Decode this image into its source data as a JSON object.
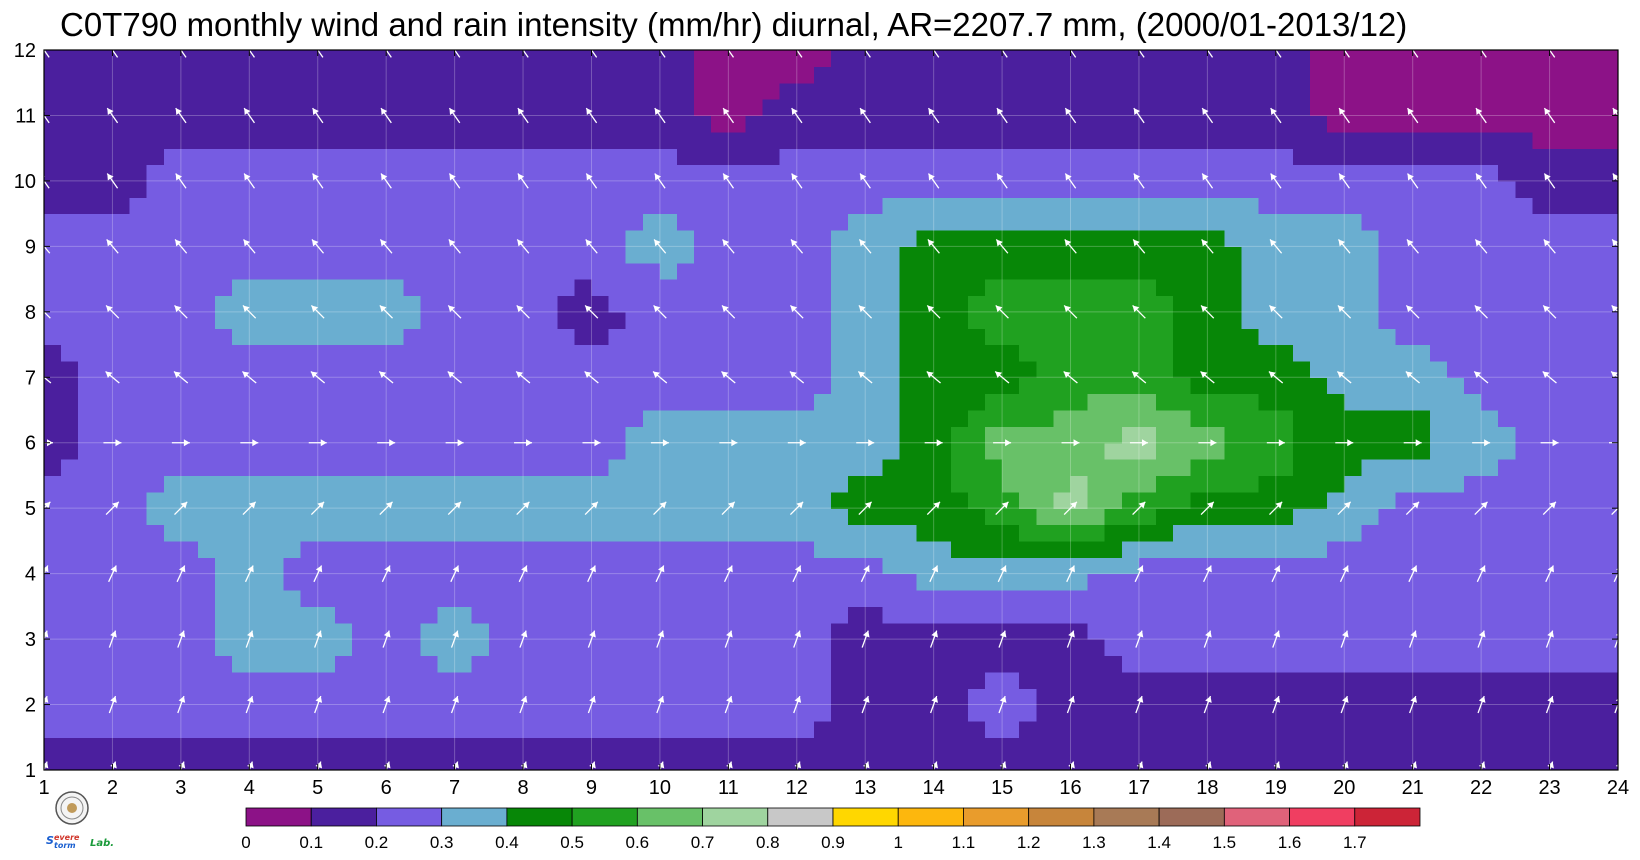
{
  "chart_data": {
    "type": "heatmap",
    "title": "C0T790 monthly wind and rain intensity (mm/hr) diurnal, AR=2207.7 mm, (2000/01-2013/12)",
    "xlabel": "",
    "ylabel": "",
    "x": [
      1,
      2,
      3,
      4,
      5,
      6,
      7,
      8,
      9,
      10,
      11,
      12,
      13,
      14,
      15,
      16,
      17,
      18,
      19,
      20,
      21,
      22,
      23,
      24
    ],
    "y": [
      1,
      2,
      3,
      4,
      5,
      6,
      7,
      8,
      9,
      10,
      11,
      12
    ],
    "xlim": [
      1,
      24
    ],
    "ylim": [
      1,
      12
    ],
    "grid": true,
    "colorbar": {
      "levels": [
        0,
        0.1,
        0.2,
        0.3,
        0.4,
        0.5,
        0.6,
        0.7,
        0.8,
        0.9,
        1,
        1.1,
        1.2,
        1.3,
        1.4,
        1.5,
        1.6,
        1.7
      ],
      "colors": [
        "#8c1287",
        "#4b1f9e",
        "#765ce2",
        "#6aaed0",
        "#078707",
        "#20a120",
        "#68c168",
        "#9fd49f",
        "#c8c8c8",
        "#ffd700",
        "#fdb70d",
        "#e99c2c",
        "#c7853b",
        "#a87a56",
        "#9c6b58",
        "#e0627a",
        "#f03e61",
        "#cc2437"
      ],
      "tick_labels": [
        "0",
        "0.1",
        "0.2",
        "0.3",
        "0.4",
        "0.5",
        "0.6",
        "0.7",
        "0.8",
        "0.9",
        "1",
        "1.1",
        "1.2",
        "1.3",
        "1.4",
        "1.5",
        "1.6",
        "1.7"
      ]
    },
    "rain_intensity_estimated": [
      [
        0.15,
        0.15,
        0.15,
        0.15,
        0.15,
        0.15,
        0.15,
        0.15,
        0.15,
        0.15,
        0.15,
        0.15,
        0.15,
        0.15,
        0.15,
        0.15,
        0.15,
        0.15,
        0.15,
        0.15,
        0.15,
        0.15,
        0.15,
        0.15
      ],
      [
        0.25,
        0.25,
        0.25,
        0.25,
        0.25,
        0.25,
        0.25,
        0.25,
        0.25,
        0.25,
        0.25,
        0.25,
        0.15,
        0.15,
        0.25,
        0.15,
        0.15,
        0.15,
        0.15,
        0.15,
        0.15,
        0.15,
        0.15,
        0.15
      ],
      [
        0.25,
        0.25,
        0.25,
        0.35,
        0.35,
        0.25,
        0.35,
        0.25,
        0.25,
        0.25,
        0.25,
        0.25,
        0.15,
        0.15,
        0.15,
        0.15,
        0.25,
        0.25,
        0.25,
        0.25,
        0.25,
        0.25,
        0.25,
        0.25
      ],
      [
        0.25,
        0.25,
        0.25,
        0.35,
        0.25,
        0.25,
        0.25,
        0.25,
        0.25,
        0.25,
        0.25,
        0.25,
        0.25,
        0.35,
        0.35,
        0.35,
        0.25,
        0.25,
        0.25,
        0.25,
        0.25,
        0.25,
        0.25,
        0.25
      ],
      [
        0.25,
        0.25,
        0.35,
        0.35,
        0.35,
        0.35,
        0.35,
        0.35,
        0.35,
        0.35,
        0.35,
        0.35,
        0.45,
        0.45,
        0.55,
        0.75,
        0.55,
        0.45,
        0.45,
        0.35,
        0.25,
        0.25,
        0.25,
        0.25
      ],
      [
        0.15,
        0.25,
        0.25,
        0.25,
        0.25,
        0.25,
        0.25,
        0.25,
        0.25,
        0.35,
        0.35,
        0.35,
        0.35,
        0.45,
        0.65,
        0.65,
        0.75,
        0.65,
        0.55,
        0.45,
        0.45,
        0.35,
        0.25,
        0.25
      ],
      [
        0.15,
        0.25,
        0.25,
        0.25,
        0.25,
        0.25,
        0.25,
        0.25,
        0.25,
        0.25,
        0.25,
        0.25,
        0.35,
        0.45,
        0.45,
        0.55,
        0.55,
        0.45,
        0.45,
        0.35,
        0.35,
        0.25,
        0.25,
        0.25
      ],
      [
        0.25,
        0.25,
        0.25,
        0.35,
        0.35,
        0.35,
        0.25,
        0.25,
        0.15,
        0.25,
        0.25,
        0.25,
        0.35,
        0.45,
        0.55,
        0.55,
        0.55,
        0.45,
        0.35,
        0.35,
        0.25,
        0.25,
        0.25,
        0.25
      ],
      [
        0.25,
        0.25,
        0.25,
        0.25,
        0.25,
        0.25,
        0.25,
        0.25,
        0.25,
        0.35,
        0.25,
        0.25,
        0.35,
        0.45,
        0.45,
        0.45,
        0.45,
        0.45,
        0.35,
        0.35,
        0.25,
        0.25,
        0.25,
        0.25
      ],
      [
        0.15,
        0.15,
        0.25,
        0.25,
        0.25,
        0.25,
        0.25,
        0.25,
        0.25,
        0.25,
        0.25,
        0.25,
        0.25,
        0.25,
        0.25,
        0.25,
        0.25,
        0.25,
        0.25,
        0.25,
        0.25,
        0.25,
        0.15,
        0.15
      ],
      [
        0.15,
        0.15,
        0.15,
        0.15,
        0.15,
        0.15,
        0.15,
        0.15,
        0.15,
        0.15,
        0.05,
        0.15,
        0.15,
        0.15,
        0.15,
        0.15,
        0.15,
        0.15,
        0.15,
        0.05,
        0.05,
        0.05,
        0.05,
        0.05
      ],
      [
        0.15,
        0.15,
        0.15,
        0.15,
        0.15,
        0.15,
        0.15,
        0.15,
        0.15,
        0.15,
        0.05,
        0.05,
        0.15,
        0.15,
        0.15,
        0.15,
        0.15,
        0.15,
        0.15,
        0.05,
        0.05,
        0.05,
        0.05,
        0.05
      ]
    ],
    "wind_direction_by_month_deg": [
      70,
      70,
      70,
      65,
      45,
      0,
      -40,
      -45,
      -50,
      -55,
      -55,
      -55
    ]
  }
}
